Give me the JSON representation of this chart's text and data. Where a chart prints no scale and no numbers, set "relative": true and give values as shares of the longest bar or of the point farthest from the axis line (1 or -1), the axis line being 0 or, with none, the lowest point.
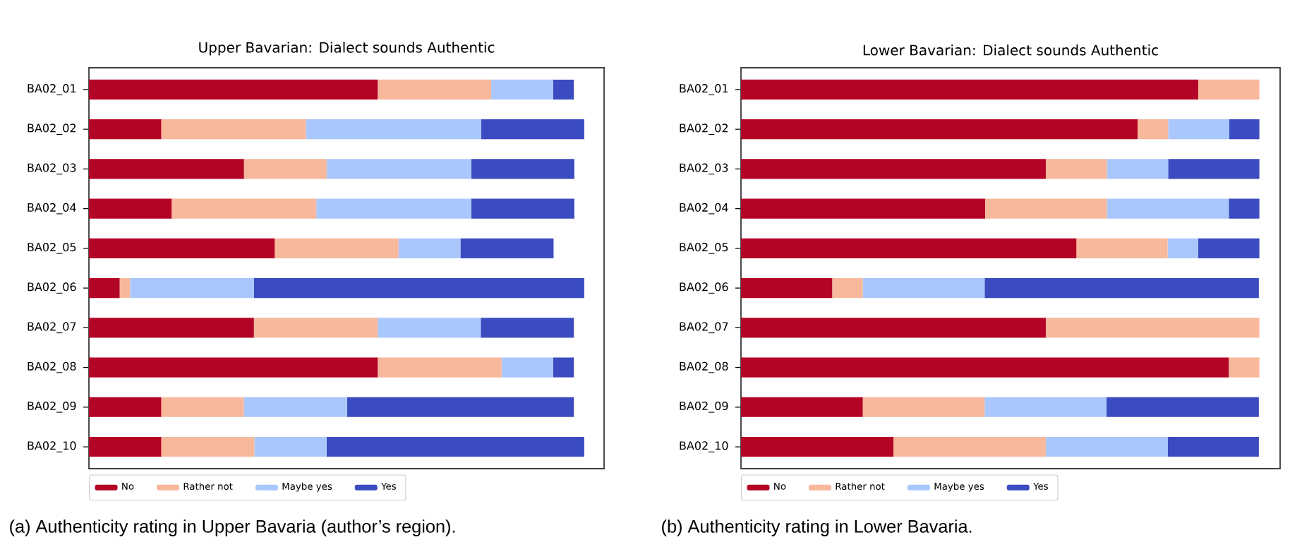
{
  "chart_data": [
    {
      "type": "bar",
      "orientation": "horizontal",
      "stacked": true,
      "relative": true,
      "title": "Upper Bavarian: Dialect sounds Authentic",
      "legend": "bottom",
      "categories": [
        "BA02_01",
        "BA02_02",
        "BA02_03",
        "BA02_04",
        "BA02_05",
        "BA02_06",
        "BA02_07",
        "BA02_08",
        "BA02_09",
        "BA02_10"
      ],
      "series": [
        {
          "name": "No",
          "color": "#b40426",
          "values": [
            0.583,
            0.146,
            0.313,
            0.167,
            0.375,
            0.062,
            0.333,
            0.583,
            0.146,
            0.146
          ]
        },
        {
          "name": "Rather not",
          "color": "#f7b89c",
          "values": [
            0.229,
            0.292,
            0.167,
            0.292,
            0.25,
            0.021,
            0.25,
            0.25,
            0.167,
            0.188
          ]
        },
        {
          "name": "Maybe yes",
          "color": "#aac7fd",
          "values": [
            0.125,
            0.354,
            0.292,
            0.313,
            0.125,
            0.25,
            0.208,
            0.104,
            0.208,
            0.146
          ]
        },
        {
          "name": "Yes",
          "color": "#3b4cc0",
          "values": [
            0.042,
            0.208,
            0.208,
            0.208,
            0.188,
            0.667,
            0.188,
            0.042,
            0.458,
            0.52
          ]
        }
      ],
      "annotations": [
        "(a) Authenticity rating in Upper Bavaria (author’s region)."
      ]
    },
    {
      "type": "bar",
      "orientation": "horizontal",
      "stacked": true,
      "relative": true,
      "title": "Lower Bavarian: Dialect sounds Authentic",
      "legend": "bottom",
      "categories": [
        "BA02_01",
        "BA02_02",
        "BA02_03",
        "BA02_04",
        "BA02_05",
        "BA02_06",
        "BA02_07",
        "BA02_08",
        "BA02_09",
        "BA02_10"
      ],
      "series": [
        {
          "name": "No",
          "color": "#b40426",
          "values": [
            0.882,
            0.765,
            0.588,
            0.471,
            0.647,
            0.176,
            0.588,
            0.941,
            0.235,
            0.294
          ]
        },
        {
          "name": "Rather not",
          "color": "#f7b89c",
          "values": [
            0.118,
            0.059,
            0.118,
            0.235,
            0.176,
            0.059,
            0.412,
            0.059,
            0.235,
            0.294
          ]
        },
        {
          "name": "Maybe yes",
          "color": "#aac7fd",
          "values": [
            0,
            0.118,
            0.118,
            0.235,
            0.059,
            0.235,
            0,
            0,
            0.235,
            0.235
          ]
        },
        {
          "name": "Yes",
          "color": "#3b4cc0",
          "values": [
            0,
            0.058,
            0.176,
            0.059,
            0.118,
            0.529,
            0,
            0,
            0.294,
            0.176
          ]
        }
      ],
      "annotations": [
        "(b) Authenticity rating in Lower Bavaria."
      ]
    }
  ]
}
